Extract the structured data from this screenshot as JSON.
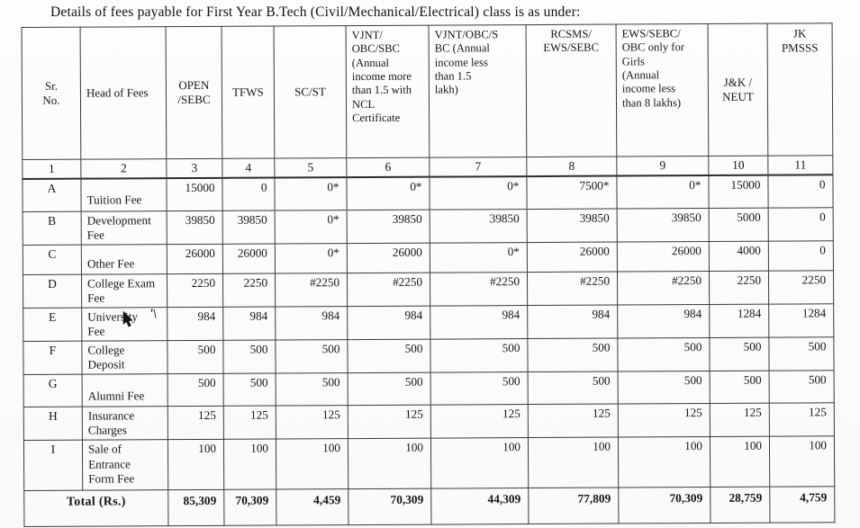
{
  "title": "Details of fees payable for First Year B.Tech (Civil/Mechanical/Electrical) class is as under:",
  "artifacts": {
    "ink_mark": "'\\"
  },
  "table": {
    "headers": [
      "Sr.\nNo.",
      "Head of Fees",
      "OPEN\n/SEBC",
      "TFWS",
      "SC/ST",
      "VJNT/\nOBC/SBC\n(Annual\nincome more\nthan 1.5 with\nNCL\nCertificate",
      "VJNT/OBC/S\nBC (Annual\nincome less\nthan 1.5\nlakh)",
      "RCSMS/\nEWS/SEBC",
      "EWS/SEBC/\nOBC only for\nGirls\n(Annual\nincome less\nthan 8 lakhs)",
      "J&K /\nNEUT",
      "JK\nPMSSS"
    ],
    "number_row": [
      "1",
      "2",
      "3",
      "4",
      "5",
      "6",
      "7",
      "8",
      "9",
      "10",
      "11"
    ],
    "rows": [
      {
        "sr": "A",
        "head": "Tuition Fee",
        "values": [
          "15000",
          "0",
          "0*",
          "0*",
          "0*",
          "7500*",
          "0*",
          "15000",
          "0"
        ]
      },
      {
        "sr": "B",
        "head": "Development\nFee",
        "values": [
          "39850",
          "39850",
          "0*",
          "39850",
          "39850",
          "39850",
          "39850",
          "5000",
          "0"
        ]
      },
      {
        "sr": "C",
        "head": "Other Fee",
        "values": [
          "26000",
          "26000",
          "0*",
          "26000",
          "0*",
          "26000",
          "26000",
          "4000",
          "0"
        ]
      },
      {
        "sr": "D",
        "head": "College Exam\nFee",
        "values": [
          "2250",
          "2250",
          "#2250",
          "#2250",
          "#2250",
          "#2250",
          "#2250",
          "2250",
          "2250"
        ]
      },
      {
        "sr": "E",
        "head": "University\nFee",
        "values": [
          "984",
          "984",
          "984",
          "984",
          "984",
          "984",
          "984",
          "1284",
          "1284"
        ]
      },
      {
        "sr": "F",
        "head": "College\nDeposit",
        "values": [
          "500",
          "500",
          "500",
          "500",
          "500",
          "500",
          "500",
          "500",
          "500"
        ]
      },
      {
        "sr": "G",
        "head": "Alumni Fee",
        "values": [
          "500",
          "500",
          "500",
          "500",
          "500",
          "500",
          "500",
          "500",
          "500"
        ]
      },
      {
        "sr": "H",
        "head": "Insurance\nCharges",
        "values": [
          "125",
          "125",
          "125",
          "125",
          "125",
          "125",
          "125",
          "125",
          "125"
        ]
      },
      {
        "sr": "I",
        "head": "Sale of\nEntrance\nForm Fee",
        "values": [
          "100",
          "100",
          "100",
          "100",
          "100",
          "100",
          "100",
          "100",
          "100"
        ]
      }
    ],
    "total": {
      "label": "Total (Rs.)",
      "values": [
        "85,309",
        "70,309",
        "4,459",
        "70,309",
        "44,309",
        "77,809",
        "70,309",
        "28,759",
        "4,759"
      ]
    }
  }
}
